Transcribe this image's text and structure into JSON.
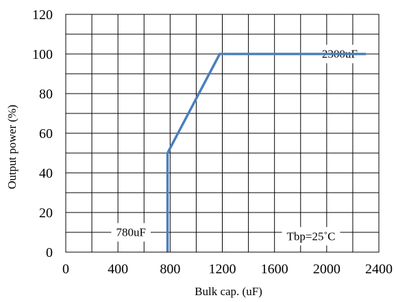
{
  "chart_data": {
    "type": "line",
    "xlabel": "Bulk cap. (uF)",
    "ylabel": "Output power (%)",
    "xlim": [
      0,
      2400
    ],
    "ylim": [
      0,
      120
    ],
    "x_ticks": [
      0,
      400,
      800,
      1200,
      1600,
      2000,
      2400
    ],
    "y_ticks": [
      0,
      20,
      40,
      60,
      80,
      100,
      120
    ],
    "grid": true,
    "grid_x_step": 200,
    "grid_y_step": 10,
    "series": [
      {
        "color": "#4a7ebb",
        "x": [
          780,
          780,
          1180,
          2300
        ],
        "y": [
          0,
          50,
          100,
          100
        ]
      }
    ],
    "annotations": [
      {
        "id": "max-cap",
        "text": "2300uF",
        "x": 2100,
        "y": 100
      },
      {
        "id": "min-cap",
        "text": "780uF",
        "x": 500,
        "y": 10
      },
      {
        "id": "temp",
        "text": "Tbp=25˚C",
        "x": 1880,
        "y": 8
      }
    ]
  }
}
